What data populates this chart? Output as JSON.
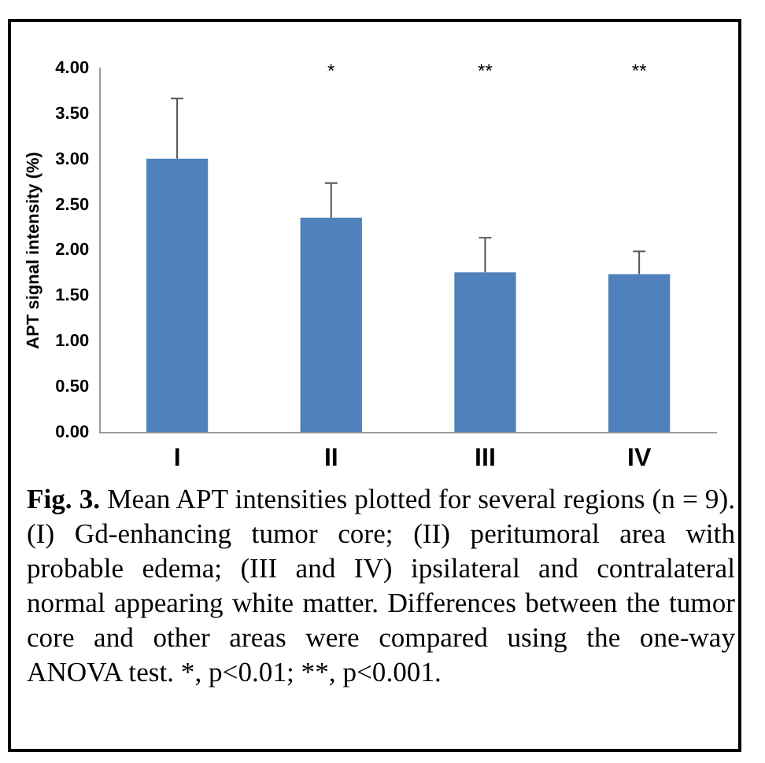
{
  "chart_data": {
    "type": "bar",
    "ylabel": "APT signal intensity (%)",
    "categories": [
      "I",
      "II",
      "III",
      "IV"
    ],
    "values": [
      3.01,
      2.36,
      1.76,
      1.74
    ],
    "errors": [
      [
        3.01,
        3.67
      ],
      [
        2.36,
        2.74
      ],
      [
        1.76,
        2.14
      ],
      [
        1.74,
        1.99
      ]
    ],
    "color": "#4f81bd",
    "ylim": [
      0,
      4
    ],
    "yticks": [
      {
        "value": 0,
        "label": "0.00"
      },
      {
        "value": 0.5,
        "label": "0.50"
      },
      {
        "value": 1,
        "label": "1.00"
      },
      {
        "value": 1.5,
        "label": "1.50"
      },
      {
        "value": 2,
        "label": "2.00"
      },
      {
        "value": 2.5,
        "label": "2.50"
      },
      {
        "value": 3,
        "label": "3.00"
      },
      {
        "value": 3.5,
        "label": "3.50"
      },
      {
        "value": 4,
        "label": "4.00"
      }
    ],
    "grid": false,
    "annotations": [
      "*",
      "**",
      "**",
      "Fig. 3.",
      "Mean APT intensities plotted for several regions (n = 9). (I) Gd-enhancing tumor core; (II) peritumoral area with probable edema; (III and IV) ipsilateral and contralateral normal appearing white matter. Differences between the tumor core and other areas were compared using the one-way ANOVA test. *, p<0.01; **, p<0.001."
    ]
  }
}
